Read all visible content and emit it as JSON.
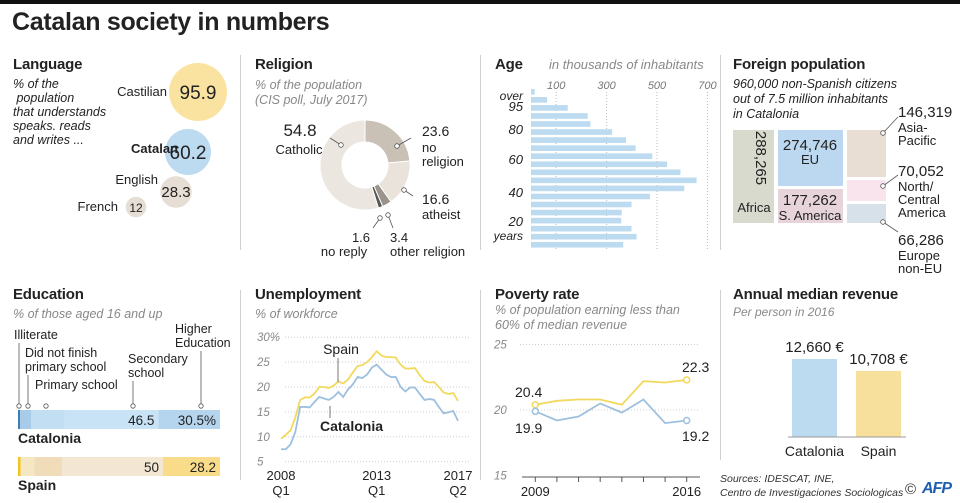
{
  "title": "Catalan society in numbers",
  "colors": {
    "blue": "#bcdaf0",
    "yellow": "#f7e09c",
    "tan": "#e6ddd4",
    "spain_line": "#f2d95c",
    "catalonia_line": "#9dc0de"
  },
  "chart_data": [
    {
      "type": "bubble",
      "title": "Language",
      "subtitle": "% of the population that understands speaks. reads and writes ...",
      "subtitle_lines": [
        "% of the",
        " population",
        "that understands",
        "speaks. reads",
        "and writes ..."
      ],
      "categories": [
        "Castilian",
        "Catalan",
        "English",
        "French"
      ],
      "values": [
        95.9,
        60.2,
        28.3,
        12
      ],
      "value_labels": [
        "95.9",
        "60.2",
        "28.3",
        "12"
      ],
      "colors": [
        "#fae3a0",
        "#bcdaf0",
        "#e6ddd4",
        "#e6ddd4"
      ]
    },
    {
      "type": "pie",
      "title": "Religion",
      "subtitle_lines": [
        "% of the population",
        "(CIS poll, July 2017)"
      ],
      "categories": [
        "no religion",
        "atheist",
        "other religion",
        "no reply",
        "Catholic"
      ],
      "values": [
        23.6,
        16.6,
        3.4,
        1.6,
        54.8
      ],
      "value_labels": [
        "23.6",
        "16.6",
        "3.4",
        "1.6",
        "54.8"
      ],
      "label_lines": [
        [
          "no",
          "religion"
        ],
        [
          "atheist"
        ],
        [
          "other religion"
        ],
        [
          "no reply"
        ],
        [
          "Catholic"
        ]
      ],
      "colors": [
        "#c9c0b6",
        "#e9e3dc",
        "#9b948d",
        "#5a5653",
        "#ebe6e0"
      ],
      "donut": true
    },
    {
      "type": "bar",
      "orientation": "horizontal",
      "title": "Age",
      "subtitle": "in thousands of inhabitants",
      "values_top_to_bottom": [
        15,
        64,
        146,
        225,
        236,
        322,
        377,
        415,
        481,
        540,
        593,
        657,
        608,
        472,
        399,
        360,
        358,
        399,
        419,
        366
      ],
      "xlim": [
        0,
        720
      ],
      "x_ticks": [
        "100",
        "300",
        "500",
        "700"
      ],
      "x_tick_values": [
        100,
        300,
        500,
        700
      ],
      "y_labels": [
        "over",
        "95",
        "80",
        "60",
        "40",
        "20",
        "years"
      ],
      "grid": true,
      "color": "#bcdaf0"
    },
    {
      "type": "treemap",
      "title": "Foreign population",
      "subtitle_lines": [
        "960,000 non-Spanish citizens",
        "out of 7.5 million inhabitants",
        "in Catalonia"
      ],
      "categories": [
        "Africa",
        "EU",
        "S. America",
        "Asia-Pacific",
        "North/ Central America",
        "Europe non-EU"
      ],
      "label_lines": [
        [
          "Africa"
        ],
        [
          "EU"
        ],
        [
          "S. America"
        ],
        [
          "Asia-",
          "Pacific"
        ],
        [
          "North/",
          "Central",
          "America"
        ],
        [
          "Europe",
          "non-EU"
        ]
      ],
      "values": [
        288265,
        274746,
        177262,
        146319,
        70052,
        66286
      ],
      "value_labels": [
        "288,265",
        "274,746",
        "177,262",
        "146,319",
        "70,052",
        "66,286"
      ],
      "colors": [
        "#d7dacd",
        "#bcd8f0",
        "#e7d4da",
        "#e9ded4",
        "#f9e3ec",
        "#d6e1e9"
      ]
    },
    {
      "type": "bar",
      "orientation": "stacked-horizontal",
      "title": "Education",
      "subtitle": "% of those aged 16 and up",
      "segments": [
        "Illiterate",
        "Did not finish primary school",
        "Primary school",
        "Secondary school",
        "Higher Education"
      ],
      "segment_label_lines": [
        [
          "Illiterate"
        ],
        [
          "Did not finish",
          "primary school"
        ],
        [
          "Primary school"
        ],
        [
          "Secondary",
          "school"
        ],
        [
          "Higher",
          "Education"
        ]
      ],
      "series": [
        {
          "name": "Catalonia",
          "values": [
            1.0,
            5.6,
            16.4,
            46.5,
            30.5
          ],
          "labels": [
            "",
            "",
            "",
            "46.5",
            "30.5%"
          ],
          "colors": [
            "#3d7fb5",
            "#a7cbe8",
            "#c2def3",
            "#c9e3f6",
            "#b5d5ef"
          ]
        },
        {
          "name": "Spain",
          "values": [
            1.3,
            6.8,
            13.7,
            50,
            28.2
          ],
          "labels": [
            "",
            "",
            "",
            "50",
            "28.2"
          ],
          "colors": [
            "#f2c51c",
            "#f6e7c4",
            "#f0dcb8",
            "#f3e7d4",
            "#f8dc8a"
          ]
        }
      ]
    },
    {
      "type": "line",
      "title": "Unemployment",
      "subtitle": "% of workforce",
      "ylim": [
        5,
        30
      ],
      "y_ticks": [
        "5",
        "10",
        "15",
        "20",
        "25",
        "30%"
      ],
      "y_tick_values": [
        5,
        10,
        15,
        20,
        25,
        30
      ],
      "x_range": [
        "2008 Q1",
        "2017 Q2"
      ],
      "x_ticks": [
        [
          "2008",
          "Q1"
        ],
        [
          "2013",
          "Q1"
        ],
        [
          "2017",
          "Q2"
        ]
      ],
      "x_tick_index": [
        0,
        20,
        37
      ],
      "grid": true,
      "series": [
        {
          "name": "Spain",
          "color": "#f2d95c",
          "values": [
            9.6,
            10.4,
            11.3,
            13.9,
            17.4,
            17.9,
            17.9,
            18.7,
            20.0,
            20.0,
            19.8,
            20.3,
            21.1,
            20.7,
            21.5,
            22.9,
            24.2,
            24.4,
            25.0,
            26.0,
            27.2,
            26.3,
            26.0,
            26.0,
            25.9,
            24.5,
            23.7,
            23.7,
            23.8,
            22.4,
            21.2,
            20.9,
            21.0,
            20.0,
            18.9,
            18.6,
            18.8,
            17.2
          ]
        },
        {
          "name": "Catalonia",
          "color": "#9dc0de",
          "values": [
            7.5,
            7.5,
            8.5,
            11.0,
            16.0,
            16.0,
            15.9,
            17.0,
            18.0,
            17.7,
            17.4,
            18.0,
            19.0,
            18.0,
            19.5,
            20.5,
            22.0,
            21.8,
            22.5,
            23.9,
            24.5,
            23.5,
            22.5,
            22.0,
            22.0,
            20.0,
            19.1,
            19.9,
            19.9,
            18.6,
            17.4,
            17.6,
            17.4,
            16.0,
            14.7,
            14.9,
            15.2,
            13.2
          ]
        }
      ]
    },
    {
      "type": "line",
      "title": "Poverty rate",
      "subtitle_lines": [
        "% of population earning less than",
        "60% of median revenue"
      ],
      "x": [
        2009,
        2010,
        2011,
        2012,
        2013,
        2014,
        2015,
        2016
      ],
      "x_ticks": [
        "2009",
        "2016"
      ],
      "ylim": [
        15,
        25
      ],
      "y_ticks": [
        "15",
        "20",
        "25"
      ],
      "y_tick_values": [
        15,
        20,
        25
      ],
      "grid": true,
      "series": [
        {
          "name": "Spain",
          "color": "#f2d95c",
          "values": [
            20.4,
            20.7,
            20.8,
            20.8,
            20.4,
            22.2,
            22.1,
            22.3
          ],
          "end_labels": [
            "20.4",
            "22.3"
          ]
        },
        {
          "name": "Catalonia",
          "color": "#9dc0de",
          "values": [
            19.9,
            19.2,
            19.5,
            20.5,
            19.8,
            20.8,
            19.0,
            19.2
          ],
          "end_labels": [
            "19.9",
            "19.2"
          ]
        }
      ]
    },
    {
      "type": "bar",
      "title": "Annual median revenue",
      "subtitle": "Per person in 2016",
      "categories": [
        "Catalonia",
        "Spain"
      ],
      "values": [
        12660,
        10708
      ],
      "value_labels": [
        "12,660 €",
        "10,708 €"
      ],
      "colors": [
        "#bcdaf0",
        "#f7e09c"
      ]
    }
  ],
  "footer": {
    "sources_line1": "Sources: IDESCAT, INE,",
    "sources_line2": "Centro de Investigaciones Sociologicas",
    "copyright": "©",
    "logo": "AFP"
  }
}
